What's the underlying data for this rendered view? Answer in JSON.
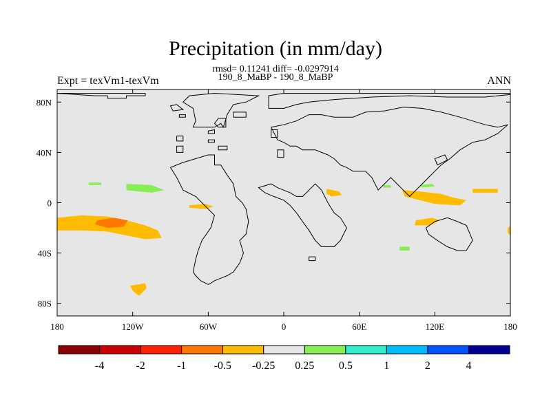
{
  "title": "Precipitation (in mm/day)",
  "stats_line": "rmsd= 0.11241 diff= -0.0297914",
  "case_line": "190_8_MaBP - 190_8_MaBP",
  "left_label": "Expt = texVm1-texVm",
  "right_label": "ANN",
  "map": {
    "projection": "cylindrical equidistant",
    "background_color": "#e6e6e6",
    "coastline_color": "#000000",
    "lon_range": [
      -180,
      180
    ],
    "lat_range": [
      -90,
      90
    ],
    "lon_ticks": [
      {
        "value": -180,
        "label": "180"
      },
      {
        "value": -120,
        "label": "120W"
      },
      {
        "value": -60,
        "label": "60W"
      },
      {
        "value": 0,
        "label": "0"
      },
      {
        "value": 60,
        "label": "60E"
      },
      {
        "value": 120,
        "label": "120E"
      },
      {
        "value": 180,
        "label": "180"
      }
    ],
    "lat_ticks": [
      {
        "value": 80,
        "label": "80N"
      },
      {
        "value": 40,
        "label": "40N"
      },
      {
        "value": 0,
        "label": "0"
      },
      {
        "value": -40,
        "label": "40S"
      },
      {
        "value": -80,
        "label": "80S"
      }
    ]
  },
  "colorbar": {
    "colors": [
      "#8b0000",
      "#cc0000",
      "#ff2200",
      "#ff7700",
      "#ffbb00",
      "#e6e6e6",
      "#88ee55",
      "#33eecc",
      "#00bbff",
      "#0055ff",
      "#000099"
    ],
    "labels": [
      "-4",
      "-2",
      "-1",
      "-0.5",
      "-0.25",
      "0.25",
      "0.5",
      "1",
      "2",
      "4"
    ]
  },
  "contours": [
    {
      "name": "pacific-band-orange",
      "color": "#ffbb00",
      "points": [
        [
          -180,
          -12
        ],
        [
          -160,
          -10
        ],
        [
          -140,
          -11
        ],
        [
          -125,
          -14
        ],
        [
          -110,
          -18
        ],
        [
          -100,
          -22
        ],
        [
          -97,
          -28
        ],
        [
          -110,
          -29
        ],
        [
          -125,
          -26
        ],
        [
          -140,
          -23
        ],
        [
          -160,
          -22
        ],
        [
          -180,
          -22
        ]
      ]
    },
    {
      "name": "pacific-core-red",
      "color": "#ff7700",
      "points": [
        [
          -148,
          -14
        ],
        [
          -135,
          -12
        ],
        [
          -124,
          -14
        ],
        [
          -127,
          -19
        ],
        [
          -140,
          -20
        ],
        [
          -150,
          -17
        ]
      ]
    },
    {
      "name": "atlantic-patch-orange",
      "color": "#ffbb00",
      "points": [
        [
          -75,
          -2
        ],
        [
          -62,
          -1
        ],
        [
          -56,
          -3
        ],
        [
          -62,
          -5
        ],
        [
          -75,
          -4
        ]
      ]
    },
    {
      "name": "pacific-green-north",
      "color": "#88ee55",
      "points": [
        [
          -125,
          15
        ],
        [
          -105,
          14
        ],
        [
          -95,
          10
        ],
        [
          -105,
          8
        ],
        [
          -125,
          10
        ]
      ]
    },
    {
      "name": "pacific-green-small",
      "color": "#88ee55",
      "points": [
        [
          -155,
          16
        ],
        [
          -145,
          16
        ],
        [
          -145,
          14
        ],
        [
          -155,
          14
        ]
      ]
    },
    {
      "name": "south-pacific-orange",
      "color": "#ffbb00",
      "points": [
        [
          -122,
          -66
        ],
        [
          -110,
          -64
        ],
        [
          -109,
          -68
        ],
        [
          -115,
          -74
        ],
        [
          -120,
          -70
        ]
      ]
    },
    {
      "name": "africa-orange-spot",
      "color": "#ffbb00",
      "points": [
        [
          34,
          11
        ],
        [
          44,
          9
        ],
        [
          46,
          6
        ],
        [
          38,
          5
        ],
        [
          34,
          7
        ]
      ]
    },
    {
      "name": "indopacific-orange",
      "color": "#ffbb00",
      "points": [
        [
          94,
          10
        ],
        [
          108,
          9
        ],
        [
          125,
          7
        ],
        [
          135,
          4
        ],
        [
          145,
          2
        ],
        [
          140,
          -2
        ],
        [
          120,
          -1
        ],
        [
          108,
          2
        ],
        [
          96,
          5
        ]
      ]
    },
    {
      "name": "pacific-east-orange",
      "color": "#ffbb00",
      "points": [
        [
          150,
          11
        ],
        [
          170,
          11
        ],
        [
          170,
          8
        ],
        [
          150,
          8
        ]
      ]
    },
    {
      "name": "indian-ocean-orange",
      "color": "#ffbb00",
      "points": [
        [
          105,
          -14
        ],
        [
          118,
          -12
        ],
        [
          124,
          -14
        ],
        [
          116,
          -18
        ],
        [
          104,
          -18
        ]
      ]
    },
    {
      "name": "east-pacific-edge-orange",
      "color": "#ffbb00",
      "points": [
        [
          178,
          -20
        ],
        [
          180,
          -18
        ],
        [
          180,
          -26
        ],
        [
          178,
          -24
        ]
      ]
    },
    {
      "name": "asia-green",
      "color": "#88ee55",
      "points": [
        [
          108,
          14
        ],
        [
          118,
          15
        ],
        [
          120,
          13
        ],
        [
          110,
          12
        ]
      ]
    },
    {
      "name": "indian-ocean-green",
      "color": "#88ee55",
      "points": [
        [
          92,
          -35
        ],
        [
          100,
          -35
        ],
        [
          100,
          -38
        ],
        [
          92,
          -38
        ]
      ]
    },
    {
      "name": "africa-green",
      "color": "#88ee55",
      "points": [
        [
          79,
          14
        ],
        [
          85,
          14
        ],
        [
          85,
          12
        ],
        [
          79,
          12
        ]
      ]
    }
  ],
  "coastlines": [
    [
      [
        -150,
        85
      ],
      [
        -140,
        85
      ],
      [
        -140,
        83
      ],
      [
        -125,
        83
      ],
      [
        -125,
        85
      ],
      [
        -110,
        85
      ],
      [
        -110,
        87
      ],
      [
        -180,
        87
      ]
    ],
    [
      [
        -72,
        60
      ],
      [
        -55,
        60
      ],
      [
        -50,
        63
      ],
      [
        -48,
        60
      ],
      [
        -45,
        70
      ],
      [
        -40,
        78
      ],
      [
        -30,
        80
      ],
      [
        -20,
        85
      ],
      [
        -55,
        87
      ],
      [
        -75,
        85
      ],
      [
        -80,
        80
      ],
      [
        -72,
        75
      ],
      [
        -70,
        65
      ]
    ],
    [
      [
        -90,
        77
      ],
      [
        -85,
        78
      ],
      [
        -80,
        74
      ],
      [
        -88,
        73
      ]
    ],
    [
      [
        -83,
        70
      ],
      [
        -78,
        70
      ],
      [
        -78,
        68
      ],
      [
        -83,
        68
      ]
    ],
    [
      [
        -85,
        53
      ],
      [
        -80,
        53
      ],
      [
        -80,
        49
      ],
      [
        -85,
        49
      ]
    ],
    [
      [
        -85,
        45
      ],
      [
        -80,
        45
      ],
      [
        -80,
        40
      ],
      [
        -85,
        40
      ]
    ],
    [
      [
        -60,
        50
      ],
      [
        -55,
        50
      ],
      [
        -55,
        48
      ],
      [
        -60,
        48
      ]
    ],
    [
      [
        -60,
        57
      ],
      [
        -55,
        58
      ],
      [
        -55,
        55
      ],
      [
        -60,
        55
      ]
    ],
    [
      [
        -52,
        67
      ],
      [
        -46,
        67
      ],
      [
        -46,
        60
      ],
      [
        -52,
        60
      ],
      [
        -55,
        63
      ]
    ],
    [
      [
        -52,
        45
      ],
      [
        -45,
        45
      ],
      [
        -45,
        42
      ],
      [
        -52,
        42
      ]
    ],
    [
      [
        -40,
        72
      ],
      [
        -30,
        72
      ],
      [
        -30,
        68
      ],
      [
        -40,
        68
      ]
    ],
    [
      [
        -60,
        38
      ],
      [
        -55,
        38
      ],
      [
        -55,
        30
      ],
      [
        -50,
        30
      ],
      [
        -45,
        22
      ],
      [
        -40,
        15
      ],
      [
        -38,
        5
      ],
      [
        -33,
        0
      ],
      [
        -30,
        -5
      ],
      [
        -28,
        -15
      ],
      [
        -30,
        -25
      ],
      [
        -35,
        -30
      ],
      [
        -32,
        -40
      ],
      [
        -35,
        -48
      ],
      [
        -40,
        -55
      ],
      [
        -45,
        -58
      ],
      [
        -50,
        -60
      ],
      [
        -55,
        -62
      ],
      [
        -58,
        -64
      ],
      [
        -60,
        -65
      ],
      [
        -66,
        -62
      ],
      [
        -70,
        -58
      ],
      [
        -72,
        -55
      ],
      [
        -70,
        -45
      ],
      [
        -68,
        -38
      ],
      [
        -65,
        -30
      ],
      [
        -58,
        -20
      ],
      [
        -55,
        -10
      ],
      [
        -60,
        -5
      ],
      [
        -70,
        5
      ],
      [
        -80,
        10
      ],
      [
        -85,
        20
      ],
      [
        -90,
        28
      ],
      [
        -80,
        32
      ],
      [
        -70,
        35
      ]
    ],
    [
      [
        -20,
        12
      ],
      [
        -10,
        15
      ],
      [
        -5,
        12
      ],
      [
        5,
        8
      ],
      [
        10,
        5
      ],
      [
        15,
        5
      ],
      [
        20,
        10
      ],
      [
        25,
        15
      ],
      [
        30,
        10
      ],
      [
        35,
        0
      ],
      [
        40,
        -8
      ],
      [
        45,
        -12
      ],
      [
        50,
        -20
      ],
      [
        45,
        -30
      ],
      [
        40,
        -35
      ],
      [
        30,
        -35
      ],
      [
        25,
        -30
      ],
      [
        20,
        -22
      ],
      [
        15,
        -15
      ],
      [
        10,
        -8
      ],
      [
        5,
        -2
      ],
      [
        0,
        2
      ],
      [
        -8,
        5
      ],
      [
        -15,
        8
      ]
    ],
    [
      [
        -12,
        75
      ],
      [
        0,
        75
      ],
      [
        10,
        78
      ],
      [
        20,
        80
      ],
      [
        40,
        82
      ],
      [
        70,
        84
      ],
      [
        100,
        85
      ],
      [
        130,
        84
      ],
      [
        160,
        84
      ],
      [
        180,
        86
      ],
      [
        180,
        87
      ],
      [
        40,
        87
      ],
      [
        0,
        87
      ],
      [
        -12,
        85
      ]
    ],
    [
      [
        -10,
        60
      ],
      [
        0,
        62
      ],
      [
        10,
        65
      ],
      [
        20,
        70
      ],
      [
        30,
        70
      ],
      [
        40,
        68
      ],
      [
        55,
        68
      ],
      [
        65,
        72
      ],
      [
        80,
        73
      ],
      [
        95,
        76
      ],
      [
        110,
        75
      ],
      [
        125,
        72
      ],
      [
        140,
        68
      ],
      [
        150,
        65
      ],
      [
        160,
        62
      ],
      [
        170,
        60
      ],
      [
        178,
        62
      ],
      [
        170,
        55
      ],
      [
        160,
        50
      ],
      [
        150,
        48
      ],
      [
        140,
        42
      ],
      [
        132,
        35
      ],
      [
        125,
        30
      ],
      [
        120,
        25
      ],
      [
        115,
        20
      ],
      [
        110,
        15
      ],
      [
        105,
        10
      ],
      [
        100,
        5
      ],
      [
        95,
        10
      ],
      [
        90,
        15
      ],
      [
        85,
        20
      ],
      [
        80,
        15
      ],
      [
        75,
        10
      ],
      [
        70,
        20
      ],
      [
        65,
        25
      ],
      [
        55,
        25
      ],
      [
        50,
        28
      ],
      [
        45,
        30
      ],
      [
        40,
        35
      ],
      [
        35,
        38
      ],
      [
        30,
        40
      ],
      [
        25,
        42
      ],
      [
        15,
        42
      ],
      [
        10,
        45
      ],
      [
        5,
        45
      ],
      [
        0,
        48
      ],
      [
        -5,
        50
      ]
    ],
    [
      [
        -10,
        58
      ],
      [
        -5,
        58
      ],
      [
        -5,
        52
      ],
      [
        -10,
        52
      ]
    ],
    [
      [
        -5,
        42
      ],
      [
        0,
        42
      ],
      [
        0,
        36
      ],
      [
        -5,
        36
      ]
    ],
    [
      [
        120,
        35
      ],
      [
        128,
        38
      ],
      [
        130,
        34
      ],
      [
        122,
        30
      ]
    ],
    [
      [
        120,
        -15
      ],
      [
        130,
        -12
      ],
      [
        138,
        -15
      ],
      [
        145,
        -18
      ],
      [
        148,
        -25
      ],
      [
        150,
        -30
      ],
      [
        145,
        -38
      ],
      [
        138,
        -38
      ],
      [
        130,
        -35
      ],
      [
        122,
        -30
      ],
      [
        115,
        -25
      ],
      [
        113,
        -20
      ]
    ],
    [
      [
        20,
        -46
      ],
      [
        25,
        -46
      ],
      [
        25,
        -43
      ],
      [
        20,
        -43
      ]
    ]
  ]
}
